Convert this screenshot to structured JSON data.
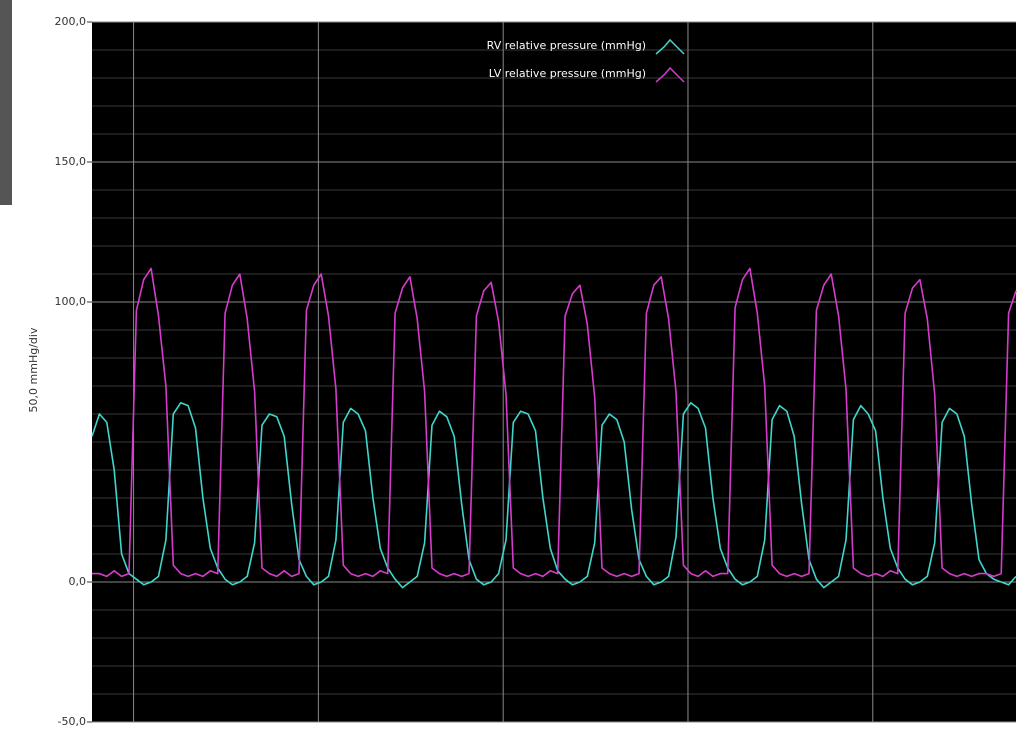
{
  "chart_data": {
    "type": "line",
    "y_axis_label": "50,0 mmHg/div",
    "ylim": [
      -50,
      200
    ],
    "yticks": [
      {
        "value": 200,
        "label": "200,0"
      },
      {
        "value": 150,
        "label": "150,0"
      },
      {
        "value": 100,
        "label": "100,0"
      },
      {
        "value": 0,
        "label": "0,0"
      },
      {
        "value": -50,
        "label": "-50,0"
      }
    ],
    "ygrid": [
      -40,
      -30,
      -20,
      -10,
      10,
      20,
      30,
      40,
      50,
      60,
      70,
      80,
      90,
      110,
      120,
      130,
      140,
      160,
      170,
      180,
      190
    ],
    "xlim": [
      0,
      1000
    ],
    "xgrid": [
      45,
      245,
      445,
      645,
      845
    ],
    "x": [
      0,
      8,
      16,
      24,
      32,
      40,
      48,
      56,
      64,
      72,
      80,
      88,
      96,
      104,
      112,
      120,
      128,
      136,
      144,
      152,
      160,
      168,
      176,
      184,
      192,
      200,
      208,
      216,
      224,
      232,
      240,
      248,
      256,
      264,
      272,
      280,
      288,
      296,
      304,
      312,
      320,
      328,
      336,
      344,
      352,
      360,
      368,
      376,
      384,
      392,
      400,
      408,
      416,
      424,
      432,
      440,
      448,
      456,
      464,
      472,
      480,
      488,
      496,
      504,
      512,
      520,
      528,
      536,
      544,
      552,
      560,
      568,
      576,
      584,
      592,
      600,
      608,
      616,
      624,
      632,
      640,
      648,
      656,
      664,
      672,
      680,
      688,
      696,
      704,
      712,
      720,
      728,
      736,
      744,
      752,
      760,
      768,
      776,
      784,
      792,
      800,
      808,
      816,
      824,
      832,
      840,
      848,
      856,
      864,
      872,
      880,
      888,
      896,
      904,
      912,
      920,
      928,
      936,
      944,
      952,
      960,
      968,
      976,
      984,
      992,
      1000
    ],
    "series": [
      {
        "name": "RV relative pressure (mmHg)",
        "color": "#3fd6cc",
        "values": [
          52,
          60,
          57,
          40,
          10,
          3,
          1,
          -1,
          0,
          2,
          15,
          60,
          64,
          63,
          55,
          30,
          12,
          5,
          1,
          -1,
          0,
          2,
          14,
          56,
          60,
          59,
          52,
          28,
          8,
          2,
          -1,
          0,
          2,
          15,
          57,
          62,
          60,
          54,
          30,
          12,
          5,
          1,
          -2,
          0,
          2,
          14,
          56,
          61,
          59,
          52,
          28,
          8,
          1,
          -1,
          0,
          3,
          15,
          57,
          61,
          60,
          54,
          30,
          12,
          4,
          1,
          -1,
          0,
          2,
          14,
          56,
          60,
          58,
          50,
          26,
          8,
          2,
          -1,
          0,
          2,
          16,
          60,
          64,
          62,
          55,
          30,
          12,
          5,
          1,
          -1,
          0,
          2,
          15,
          58,
          63,
          61,
          52,
          28,
          8,
          1,
          -2,
          0,
          2,
          15,
          58,
          63,
          60,
          54,
          30,
          12,
          5,
          1,
          -1,
          0,
          2,
          14,
          57,
          62,
          60,
          52,
          28,
          8,
          3,
          1,
          0,
          -1,
          2
        ]
      },
      {
        "name": "LV relative pressure (mmHg)",
        "color": "#d63ccc",
        "values": [
          3,
          3,
          2,
          4,
          2,
          3,
          97,
          108,
          112,
          95,
          70,
          6,
          3,
          2,
          3,
          2,
          4,
          3,
          96,
          106,
          110,
          94,
          68,
          5,
          3,
          2,
          4,
          2,
          3,
          97,
          106,
          110,
          95,
          69,
          6,
          3,
          2,
          3,
          2,
          4,
          3,
          96,
          105,
          109,
          94,
          68,
          5,
          3,
          2,
          3,
          2,
          3,
          95,
          104,
          107,
          93,
          67,
          5,
          3,
          2,
          3,
          2,
          4,
          3,
          95,
          103,
          106,
          92,
          66,
          5,
          3,
          2,
          3,
          2,
          3,
          96,
          106,
          109,
          94,
          68,
          6,
          3,
          2,
          4,
          2,
          3,
          3,
          98,
          108,
          112,
          96,
          70,
          6,
          3,
          2,
          3,
          2,
          3,
          97,
          106,
          110,
          95,
          69,
          5,
          3,
          2,
          3,
          2,
          4,
          3,
          96,
          105,
          108,
          94,
          67,
          5,
          3,
          2,
          3,
          2,
          3,
          3,
          2,
          3,
          96,
          104
        ]
      }
    ]
  }
}
